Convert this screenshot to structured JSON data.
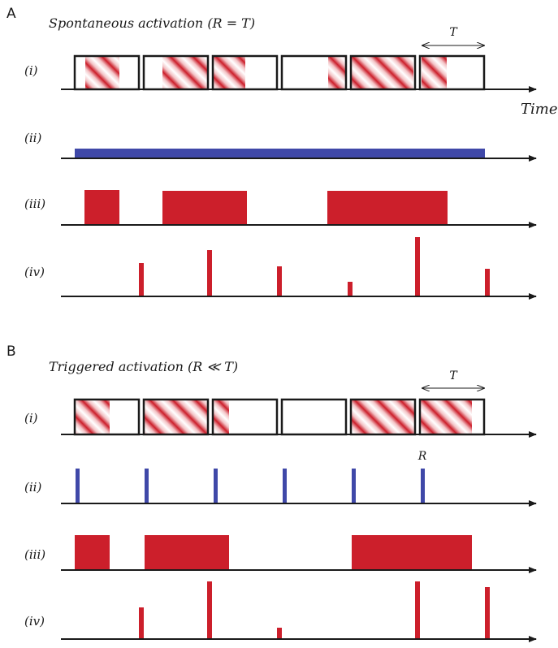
{
  "panelA": {
    "letter": "A",
    "title": "Spontaneous activation (R = T)",
    "row_labels": [
      "(i)",
      "(ii)",
      "(iii)",
      "(iv)"
    ],
    "axis_label": "Time",
    "period_label": "T"
  },
  "panelB": {
    "letter": "B",
    "title": "Triggered activation (R ≪ T)",
    "row_labels": [
      "(i)",
      "(ii)",
      "(iii)",
      "(iv)"
    ],
    "period_label": "T",
    "refractory_label": "R"
  },
  "colors": {
    "red": "#cc1f2b",
    "blue": "#3f48a8",
    "line": "#1a1a1a"
  }
}
